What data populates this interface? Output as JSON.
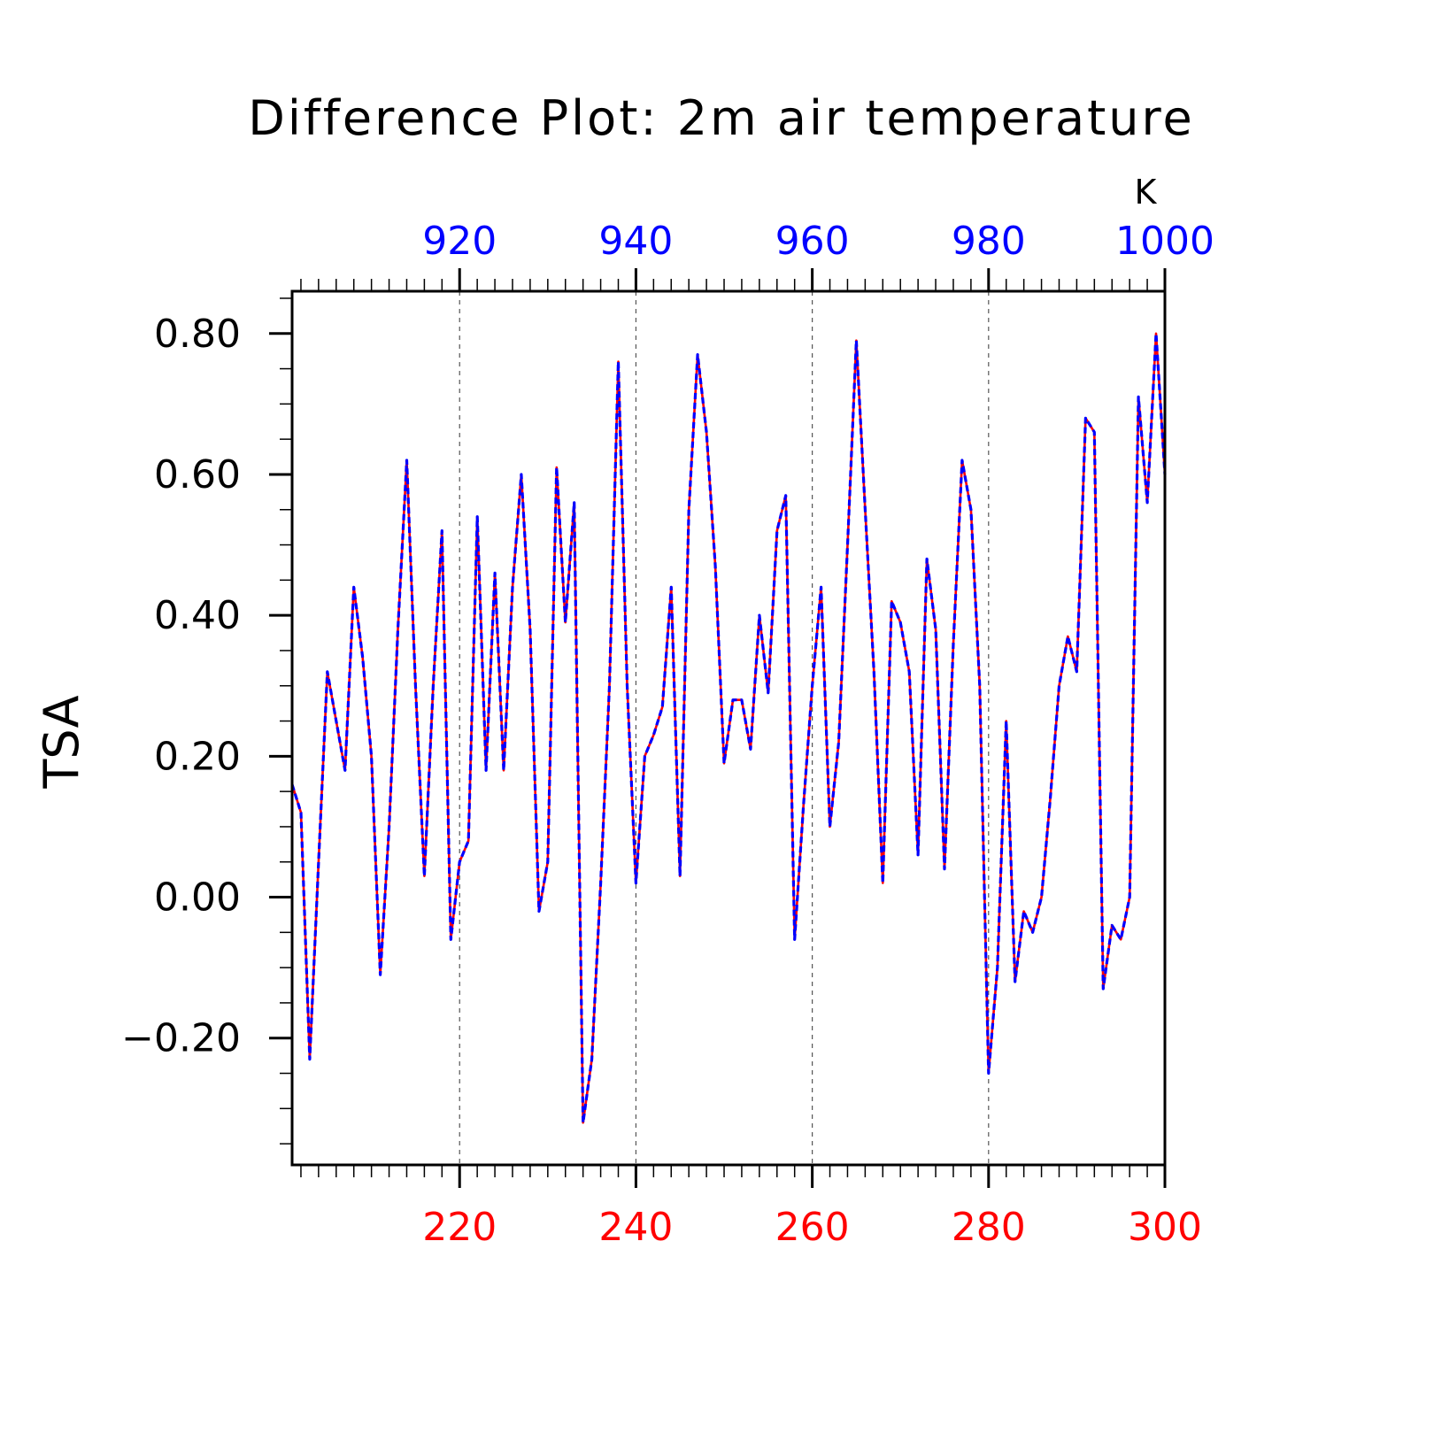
{
  "chart_data": {
    "type": "line",
    "title": "Difference Plot: 2m air temperature",
    "ylabel": "TSA",
    "units_label": "K",
    "xlim": [
      201,
      300
    ],
    "ylim": [
      -0.38,
      0.86
    ],
    "grid": "vertical dashed lines at labeled x ticks",
    "bottom_axis": {
      "color": "#ff0000",
      "ticks": [
        220,
        240,
        260,
        280,
        300
      ],
      "tick_labels": [
        "220",
        "240",
        "260",
        "280",
        "300"
      ]
    },
    "top_axis": {
      "color": "#0000ff",
      "ticks": [
        920,
        940,
        960,
        980,
        1000
      ],
      "tick_labels": [
        "920",
        "940",
        "960",
        "980",
        "1000"
      ]
    },
    "y_axis": {
      "ticks": [
        -0.2,
        0.0,
        0.2,
        0.4,
        0.6,
        0.8
      ],
      "tick_labels": [
        "−0.20",
        "0.00",
        "0.20",
        "0.40",
        "0.60",
        "0.80"
      ]
    },
    "x": [
      201,
      202,
      203,
      204,
      205,
      206,
      207,
      208,
      209,
      210,
      211,
      212,
      213,
      214,
      215,
      216,
      217,
      218,
      219,
      220,
      221,
      222,
      223,
      224,
      225,
      226,
      227,
      228,
      229,
      230,
      231,
      232,
      233,
      234,
      235,
      236,
      237,
      238,
      239,
      240,
      241,
      242,
      243,
      244,
      245,
      246,
      247,
      248,
      249,
      250,
      251,
      252,
      253,
      254,
      255,
      256,
      257,
      258,
      259,
      260,
      261,
      262,
      263,
      264,
      265,
      266,
      267,
      268,
      269,
      270,
      271,
      272,
      273,
      274,
      275,
      276,
      277,
      278,
      279,
      280,
      281,
      282,
      283,
      284,
      285,
      286,
      287,
      288,
      289,
      290,
      291,
      292,
      293,
      294,
      295,
      296,
      297,
      298,
      299,
      300
    ],
    "series": [
      {
        "color": "#ff0000",
        "style": "solid",
        "values": [
          0.16,
          0.12,
          -0.23,
          0.05,
          0.32,
          0.25,
          0.18,
          0.44,
          0.34,
          0.2,
          -0.11,
          0.1,
          0.38,
          0.62,
          0.3,
          0.03,
          0.3,
          0.52,
          -0.06,
          0.05,
          0.08,
          0.54,
          0.18,
          0.46,
          0.18,
          0.44,
          0.6,
          0.38,
          -0.02,
          0.05,
          0.61,
          0.39,
          0.56,
          -0.32,
          -0.23,
          0.02,
          0.3,
          0.76,
          0.3,
          0.02,
          0.2,
          0.23,
          0.27,
          0.44,
          0.03,
          0.55,
          0.77,
          0.66,
          0.47,
          0.19,
          0.28,
          0.28,
          0.21,
          0.4,
          0.29,
          0.52,
          0.57,
          -0.06,
          0.13,
          0.3,
          0.44,
          0.1,
          0.22,
          0.5,
          0.79,
          0.55,
          0.32,
          0.02,
          0.42,
          0.39,
          0.32,
          0.06,
          0.48,
          0.38,
          0.04,
          0.36,
          0.62,
          0.55,
          0.3,
          -0.25,
          -0.1,
          0.25,
          -0.12,
          -0.02,
          -0.05,
          0.0,
          0.14,
          0.3,
          0.37,
          0.32,
          0.68,
          0.66,
          -0.13,
          -0.04,
          -0.06,
          0.0,
          0.71,
          0.56,
          0.8,
          0.6
        ]
      },
      {
        "color": "#0000ff",
        "style": "dashed",
        "values": [
          0.16,
          0.12,
          -0.23,
          0.05,
          0.32,
          0.25,
          0.18,
          0.44,
          0.34,
          0.2,
          -0.11,
          0.1,
          0.38,
          0.62,
          0.3,
          0.03,
          0.3,
          0.52,
          -0.06,
          0.05,
          0.08,
          0.54,
          0.18,
          0.46,
          0.18,
          0.44,
          0.6,
          0.38,
          -0.02,
          0.05,
          0.61,
          0.39,
          0.56,
          -0.32,
          -0.23,
          0.02,
          0.3,
          0.76,
          0.3,
          0.02,
          0.2,
          0.23,
          0.27,
          0.44,
          0.03,
          0.55,
          0.77,
          0.66,
          0.47,
          0.19,
          0.28,
          0.28,
          0.21,
          0.4,
          0.29,
          0.52,
          0.57,
          -0.06,
          0.13,
          0.3,
          0.44,
          0.1,
          0.22,
          0.5,
          0.79,
          0.55,
          0.32,
          0.02,
          0.42,
          0.39,
          0.32,
          0.06,
          0.48,
          0.38,
          0.04,
          0.36,
          0.62,
          0.55,
          0.3,
          -0.25,
          -0.1,
          0.25,
          -0.12,
          -0.02,
          -0.05,
          0.0,
          0.14,
          0.3,
          0.37,
          0.32,
          0.68,
          0.66,
          -0.13,
          -0.04,
          -0.06,
          0.0,
          0.71,
          0.56,
          0.8,
          0.6
        ]
      }
    ]
  }
}
